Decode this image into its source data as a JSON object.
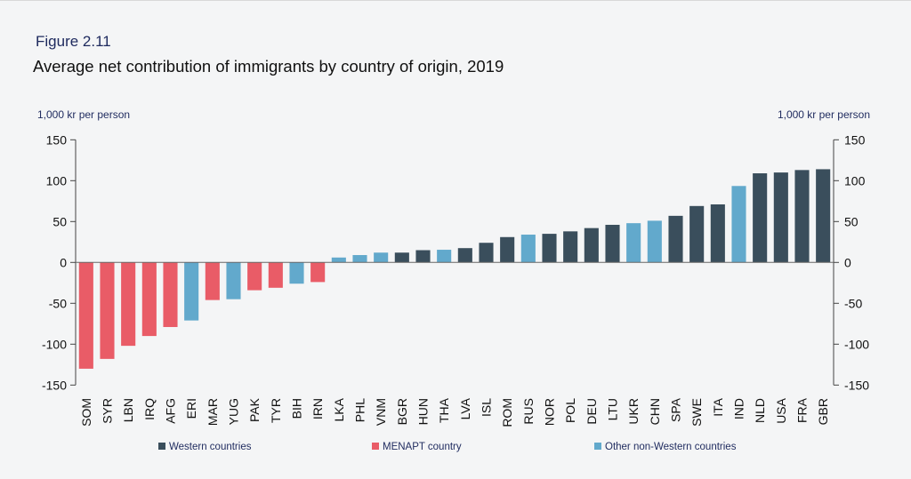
{
  "figure_label": "Figure 2.11",
  "chart_data": {
    "type": "bar",
    "title": "Average net contribution of immigrants by country of origin, 2019",
    "ylabel_left": "1,000 kr per person",
    "ylabel_right": "1,000 kr per person",
    "ylim": [
      -150,
      150
    ],
    "yticks": [
      -150,
      -100,
      -50,
      0,
      50,
      100,
      150
    ],
    "grid": false,
    "legend_position": "bottom",
    "categories": [
      "SOM",
      "SYR",
      "LBN",
      "IRQ",
      "AFG",
      "ERI",
      "MAR",
      "YUG",
      "PAK",
      "TYR",
      "BIH",
      "IRN",
      "LKA",
      "PHL",
      "VNM",
      "BGR",
      "HUN",
      "THA",
      "LVA",
      "ISL",
      "ROM",
      "RUS",
      "NOR",
      "POL",
      "DEU",
      "LTU",
      "UKR",
      "CHN",
      "SPA",
      "SWE",
      "ITA",
      "IND",
      "NLD",
      "USA",
      "FRA",
      "GBR"
    ],
    "values": [
      -130,
      -118,
      -102,
      -90,
      -79,
      -71,
      -46,
      -45,
      -34,
      -31,
      -26,
      -24,
      6,
      9,
      12,
      12,
      15,
      15.5,
      17.5,
      24,
      31,
      34,
      35,
      38,
      42,
      46,
      48,
      51,
      57,
      69,
      71,
      93.5,
      109,
      110,
      113,
      114
    ],
    "groups": [
      "MENAPT",
      "MENAPT",
      "MENAPT",
      "MENAPT",
      "MENAPT",
      "Other",
      "MENAPT",
      "Other",
      "MENAPT",
      "MENAPT",
      "Other",
      "MENAPT",
      "Other",
      "Other",
      "Other",
      "Western",
      "Western",
      "Other",
      "Western",
      "Western",
      "Western",
      "Other",
      "Western",
      "Western",
      "Western",
      "Western",
      "Other",
      "Other",
      "Western",
      "Western",
      "Western",
      "Other",
      "Western",
      "Western",
      "Western",
      "Western"
    ],
    "legend": [
      {
        "key": "Western",
        "label": "Western countries",
        "color": "#3a4e5c"
      },
      {
        "key": "MENAPT",
        "label": "MENAPT country",
        "color": "#e95c67"
      },
      {
        "key": "Other",
        "label": "Other non-Western countries",
        "color": "#62a9cc"
      }
    ]
  }
}
